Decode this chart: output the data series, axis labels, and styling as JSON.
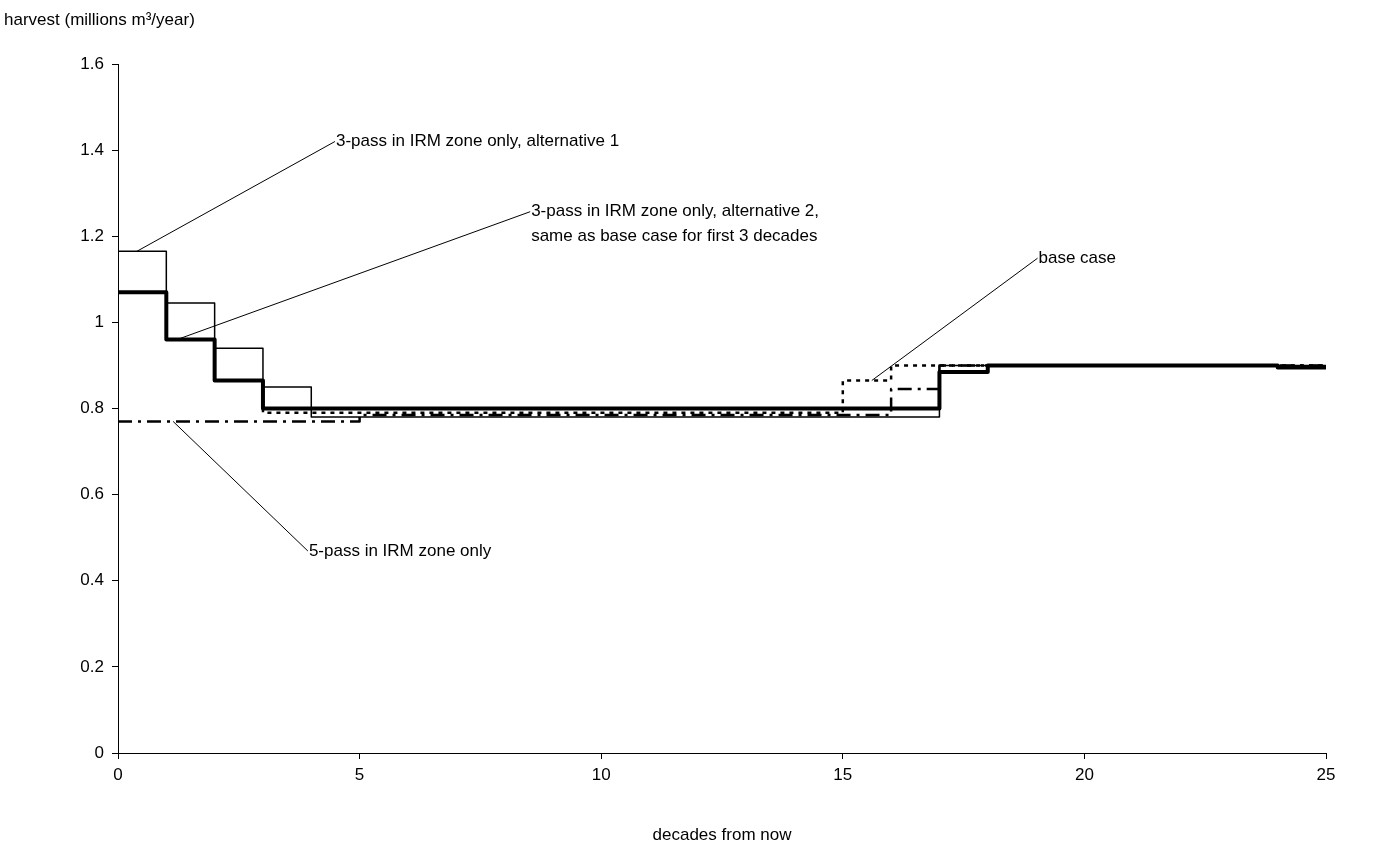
{
  "chart_data": {
    "type": "step",
    "ylabel": "harvest (millions m³/year)",
    "xlabel": "decades from now",
    "xlim": [
      0,
      25
    ],
    "xticks": [
      0,
      5,
      10,
      15,
      20,
      25
    ],
    "ylim": [
      0,
      1.6
    ],
    "yticks": [
      0,
      0.2,
      0.4,
      0.6,
      0.8,
      1,
      1.2,
      1.4,
      1.6
    ],
    "grid": false,
    "legend": false,
    "marker": "none",
    "series": [
      {
        "color": "#000000",
        "line_style": "solid",
        "x": [
          0,
          1,
          2,
          3,
          4,
          17,
          25
        ],
        "values": [
          1.165,
          1.045,
          0.94,
          0.85,
          0.78,
          0.9,
          0.9
        ]
      },
      {
        "color": "#000000",
        "line_style": "solid",
        "x": [
          0,
          1,
          2,
          3,
          17,
          18,
          24,
          25
        ],
        "values": [
          1.07,
          0.96,
          0.865,
          0.8,
          0.885,
          0.9,
          0.895,
          0.895
        ]
      },
      {
        "color": "#000000",
        "line_style": "dotted",
        "x": [
          0,
          1,
          2,
          3,
          15,
          16,
          25
        ],
        "values": [
          1.07,
          0.96,
          0.865,
          0.79,
          0.865,
          0.9,
          0.9
        ]
      },
      {
        "color": "#000000",
        "line_style": "dashed",
        "x": [
          0,
          5,
          16,
          17,
          25
        ],
        "values": [
          0.77,
          0.785,
          0.845,
          0.9,
          0.9
        ]
      }
    ],
    "annotations": [
      {
        "text": "3-pass in IRM zone only, alternative 1",
        "x": 0.39,
        "y": 1.165
      },
      {
        "text": "3-pass in IRM zone only, alternative 2,\nsame as base case for first 3 decades",
        "x": 1.22,
        "y": 0.96
      },
      {
        "text": "base case",
        "x": 15.6,
        "y": 0.865
      },
      {
        "text": "5-pass in IRM zone only",
        "x": 1.14,
        "y": 0.77
      }
    ]
  }
}
